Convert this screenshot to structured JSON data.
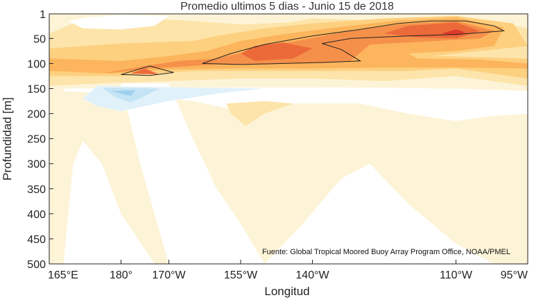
{
  "chart_data": {
    "type": "heatmap",
    "title": "Promedio ultimos 5 dias - Junio 15 de 2018",
    "xlabel": "Longitud",
    "ylabel": "Profundidad [m]",
    "source_note": "Fuente: Global Tropical Moored Buoy Array Program Office, NOAA/PMEL",
    "xlim": [
      165,
      265
    ],
    "ylim": [
      500,
      1
    ],
    "x_ticks": [
      {
        "value": 165,
        "label": "165°E"
      },
      {
        "value": 180,
        "label": "180°"
      },
      {
        "value": 190,
        "label": "170°W"
      },
      {
        "value": 205,
        "label": "155°W"
      },
      {
        "value": 220,
        "label": "140°W"
      },
      {
        "value": 250,
        "label": "110°W"
      },
      {
        "value": 265,
        "label": "95°W"
      }
    ],
    "y_ticks": [
      1,
      50,
      100,
      150,
      200,
      250,
      300,
      350,
      400,
      450,
      500
    ],
    "colors": {
      "white": "#ffffff",
      "pale_yellow": "#fdf4d8",
      "light_yellow": "#fde4aa",
      "yellow": "#fdd080",
      "orange_light": "#fcb55c",
      "orange": "#f5904a",
      "red_orange": "#ec6a3a",
      "red": "#dc3a2a",
      "pale_blue": "#e0f1fa",
      "light_blue": "#c4e4f6",
      "blue": "#9fd0ef",
      "contour": "#222222"
    },
    "regions": [
      {
        "fill": "pale_yellow",
        "points": [
          [
            165,
            1
          ],
          [
            265,
            1
          ],
          [
            265,
            500
          ],
          [
            165,
            500
          ]
        ]
      },
      {
        "fill": "white",
        "points": [
          [
            168,
            500
          ],
          [
            170,
            300
          ],
          [
            172,
            255
          ],
          [
            176,
            300
          ],
          [
            178,
            350
          ],
          [
            180,
            400
          ],
          [
            187,
            500
          ]
        ]
      },
      {
        "fill": "white",
        "points": [
          [
            180,
            140
          ],
          [
            190,
            140
          ],
          [
            195,
            250
          ],
          [
            200,
            350
          ],
          [
            205,
            420
          ],
          [
            210,
            500
          ],
          [
            190,
            500
          ],
          [
            184,
            300
          ]
        ]
      },
      {
        "fill": "white",
        "points": [
          [
            210,
            500
          ],
          [
            218,
            420
          ],
          [
            226,
            330
          ],
          [
            232,
            300
          ],
          [
            240,
            380
          ],
          [
            250,
            460
          ],
          [
            258,
            500
          ]
        ]
      },
      {
        "fill": "white",
        "points": [
          [
            168,
            150
          ],
          [
            195,
            148
          ],
          [
            225,
            148
          ],
          [
            250,
            150
          ],
          [
            265,
            155
          ],
          [
            265,
            200
          ],
          [
            257,
            205
          ],
          [
            250,
            215
          ],
          [
            240,
            200
          ],
          [
            230,
            180
          ],
          [
            215,
            180
          ],
          [
            205,
            195
          ],
          [
            195,
            175
          ],
          [
            180,
            160
          ],
          [
            168,
            155
          ]
        ]
      },
      {
        "fill": "light_yellow",
        "points": [
          [
            165,
            40
          ],
          [
            170,
            20
          ],
          [
            185,
            10
          ],
          [
            195,
            15
          ],
          [
            205,
            22
          ],
          [
            215,
            18
          ],
          [
            220,
            10
          ],
          [
            235,
            15
          ],
          [
            255,
            12
          ],
          [
            265,
            30
          ],
          [
            265,
            145
          ],
          [
            250,
            125
          ],
          [
            235,
            135
          ],
          [
            220,
            130
          ],
          [
            205,
            130
          ],
          [
            190,
            135
          ],
          [
            175,
            140
          ],
          [
            165,
            145
          ]
        ]
      },
      {
        "fill": "white",
        "points": [
          [
            169,
            15
          ],
          [
            173,
            8
          ],
          [
            180,
            3
          ],
          [
            190,
            5
          ],
          [
            187,
            25
          ],
          [
            180,
            32
          ],
          [
            172,
            30
          ]
        ]
      },
      {
        "fill": "yellow",
        "points": [
          [
            165,
            70
          ],
          [
            180,
            60
          ],
          [
            195,
            55
          ],
          [
            200,
            45
          ],
          [
            210,
            30
          ],
          [
            220,
            20
          ],
          [
            235,
            10
          ],
          [
            250,
            5
          ],
          [
            262,
            20
          ],
          [
            265,
            65
          ],
          [
            255,
            75
          ],
          [
            245,
            85
          ],
          [
            265,
            90
          ],
          [
            265,
            130
          ],
          [
            250,
            110
          ],
          [
            240,
            115
          ],
          [
            225,
            115
          ],
          [
            210,
            115
          ],
          [
            195,
            115
          ],
          [
            180,
            125
          ],
          [
            165,
            125
          ]
        ]
      },
      {
        "fill": "orange_light",
        "points": [
          [
            165,
            90
          ],
          [
            180,
            95
          ],
          [
            190,
            85
          ],
          [
            198,
            75
          ],
          [
            205,
            55
          ],
          [
            215,
            40
          ],
          [
            225,
            28
          ],
          [
            237,
            15
          ],
          [
            250,
            8
          ],
          [
            260,
            28
          ],
          [
            258,
            65
          ],
          [
            250,
            75
          ],
          [
            240,
            80
          ],
          [
            242,
            90
          ],
          [
            255,
            92
          ],
          [
            265,
            100
          ],
          [
            265,
            110
          ],
          [
            250,
            108
          ],
          [
            235,
            108
          ],
          [
            220,
            110
          ],
          [
            205,
            110
          ],
          [
            190,
            112
          ],
          [
            178,
            120
          ],
          [
            165,
            115
          ]
        ]
      },
      {
        "fill": "orange",
        "points": [
          [
            176,
            120
          ],
          [
            185,
            105
          ],
          [
            192,
            95
          ],
          [
            200,
            90
          ],
          [
            207,
            75
          ],
          [
            215,
            58
          ],
          [
            225,
            40
          ],
          [
            238,
            22
          ],
          [
            250,
            15
          ],
          [
            258,
            35
          ],
          [
            255,
            50
          ],
          [
            240,
            58
          ],
          [
            232,
            62
          ],
          [
            228,
            95
          ],
          [
            215,
            100
          ],
          [
            200,
            102
          ],
          [
            186,
            110
          ]
        ]
      },
      {
        "fill": "red_orange",
        "points": [
          [
            205,
            80
          ],
          [
            208,
            65
          ],
          [
            214,
            58
          ],
          [
            220,
            70
          ],
          [
            216,
            90
          ],
          [
            208,
            95
          ]
        ]
      },
      {
        "fill": "red_orange",
        "points": [
          [
            235,
            40
          ],
          [
            240,
            25
          ],
          [
            250,
            18
          ],
          [
            255,
            35
          ],
          [
            250,
            50
          ],
          [
            242,
            48
          ]
        ]
      },
      {
        "fill": "red",
        "points": [
          [
            247,
            40
          ],
          [
            250,
            32
          ],
          [
            252,
            38
          ],
          [
            250,
            44
          ]
        ]
      },
      {
        "fill": "red_orange",
        "points": [
          [
            182,
            120
          ],
          [
            185,
            110
          ],
          [
            188,
            122
          ]
        ]
      },
      {
        "fill": "pale_blue",
        "points": [
          [
            175,
            145
          ],
          [
            195,
            148
          ],
          [
            210,
            150
          ],
          [
            200,
            160
          ],
          [
            190,
            175
          ],
          [
            185,
            185
          ],
          [
            180,
            195
          ],
          [
            175,
            185
          ],
          [
            172,
            170
          ]
        ]
      },
      {
        "fill": "light_blue",
        "points": [
          [
            176,
            148
          ],
          [
            188,
            150
          ],
          [
            185,
            165
          ],
          [
            182,
            178
          ],
          [
            179,
            168
          ]
        ]
      },
      {
        "fill": "blue",
        "points": [
          [
            178,
            155
          ],
          [
            183,
            153
          ],
          [
            182,
            165
          ]
        ]
      },
      {
        "fill": "light_yellow",
        "points": [
          [
            202,
            180
          ],
          [
            210,
            175
          ],
          [
            216,
            180
          ],
          [
            210,
            200
          ],
          [
            206,
            225
          ],
          [
            203,
            200
          ]
        ]
      }
    ],
    "contours": [
      [
        [
          197,
          100
        ],
        [
          203,
          80
        ],
        [
          210,
          62
        ],
        [
          220,
          45
        ],
        [
          230,
          32
        ],
        [
          238,
          20
        ],
        [
          245,
          15
        ],
        [
          252,
          15
        ],
        [
          258,
          25
        ],
        [
          260,
          35
        ],
        [
          250,
          42
        ],
        [
          240,
          45
        ],
        [
          228,
          50
        ],
        [
          222,
          60
        ],
        [
          226,
          72
        ],
        [
          230,
          95
        ],
        [
          222,
          98
        ],
        [
          214,
          100
        ],
        [
          205,
          102
        ],
        [
          197,
          100
        ]
      ],
      [
        [
          180,
          122
        ],
        [
          186,
          105
        ],
        [
          191,
          118
        ],
        [
          186,
          124
        ],
        [
          180,
          122
        ]
      ]
    ]
  }
}
